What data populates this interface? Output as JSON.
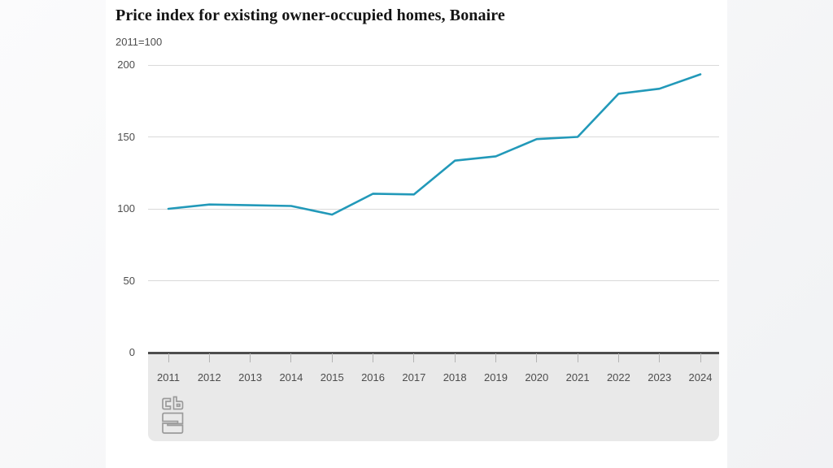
{
  "header": {
    "title": "Price index for existing owner-occupied homes, Bonaire",
    "subtitle": "2011=100"
  },
  "chart_data": {
    "type": "line",
    "title": "Price index for existing owner-occupied homes, Bonaire",
    "subtitle": "2011=100",
    "x": [
      2011,
      2012,
      2013,
      2014,
      2015,
      2016,
      2017,
      2018,
      2019,
      2020,
      2021,
      2022,
      2023,
      2024
    ],
    "x_tick_labels": [
      "2011",
      "2012",
      "2013",
      "2014",
      "2015",
      "2016",
      "2017",
      "2018",
      "2019",
      "2020",
      "2021",
      "2022",
      "2023",
      "2024"
    ],
    "series": [
      {
        "name": "Price index (2011=100)",
        "values": [
          100,
          103,
          102.5,
          102,
          96,
          110.5,
          110,
          133.5,
          136.5,
          148.5,
          150,
          180,
          183.5,
          193.5
        ]
      }
    ],
    "ylim": [
      0,
      200
    ],
    "y_ticks": [
      200,
      150,
      100,
      50,
      0
    ],
    "grid": true,
    "legend": "none",
    "line_color": "#2299b9",
    "gridline_color": "#d9d9d9",
    "axis_color": "#4d4d4d",
    "band_color": "#e9e9e9",
    "label_color": "#4d4d4d"
  },
  "branding": {
    "logo_name": "cbs-logo",
    "logo_color": "#9b9b9b"
  }
}
